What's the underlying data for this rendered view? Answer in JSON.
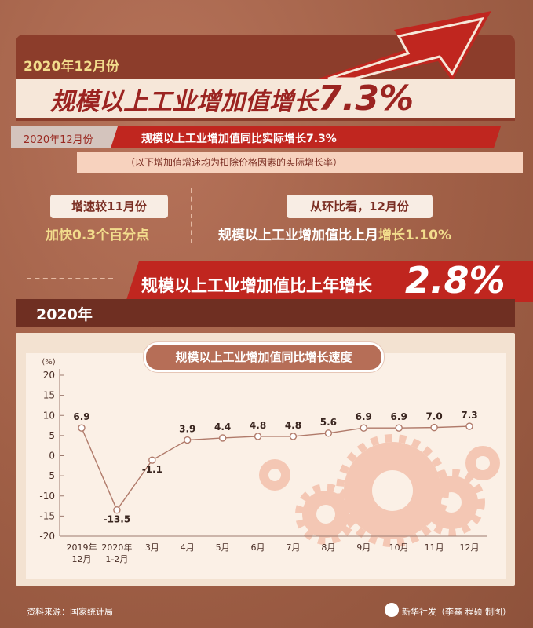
{
  "header": {
    "date": "2020年12月份",
    "title_prefix": "规模以上工业增加值增长",
    "title_value": "7.3%"
  },
  "sub": {
    "date": "2020年12月份",
    "headline": "规模以上工业增加值同比实际增长7.3%",
    "note": "（以下增加值增速均为扣除价格因素的实际增长率）"
  },
  "highlights": {
    "left_label": "增速较11月份",
    "left_value": "加快0.3个百分点",
    "right_label": "从环比看，12月份",
    "right_prefix": "规模以上工业增加值比上月",
    "right_accent": "增长1.10%"
  },
  "year": {
    "label": "2020年",
    "headline": "规模以上工业增加值比上年增长",
    "value": "2.8%"
  },
  "colors": {
    "accent_red": "#c0261f",
    "accent_yellow": "#f2dc8c",
    "line": "#b07a6a"
  },
  "chart_data": {
    "type": "line",
    "title": "规模以上工业增加值同比增长速度",
    "ylabel": "(%)",
    "xlabel": "",
    "categories": [
      "2019年\n12月",
      "2020年\n1-2月",
      "3月",
      "4月",
      "5月",
      "6月",
      "7月",
      "8月",
      "9月",
      "10月",
      "11月",
      "12月"
    ],
    "values": [
      6.9,
      -13.5,
      -1.1,
      3.9,
      4.4,
      4.8,
      4.8,
      5.6,
      6.9,
      6.9,
      7.0,
      7.3
    ],
    "data_labels": [
      "6.9",
      "-13.5",
      "-1.1",
      "3.9",
      "4.4",
      "4.8",
      "4.8",
      "5.6",
      "6.9",
      "6.9",
      "7.0",
      "7.3"
    ],
    "ylim": [
      -20,
      20
    ],
    "yticks": [
      20,
      15,
      10,
      5,
      0,
      -5,
      -10,
      -15,
      -20
    ],
    "grid": false,
    "legend": "none"
  },
  "footer": {
    "source": "资料来源：国家统计局",
    "credit": "新华社发（李鑫 程硕 制图）"
  }
}
